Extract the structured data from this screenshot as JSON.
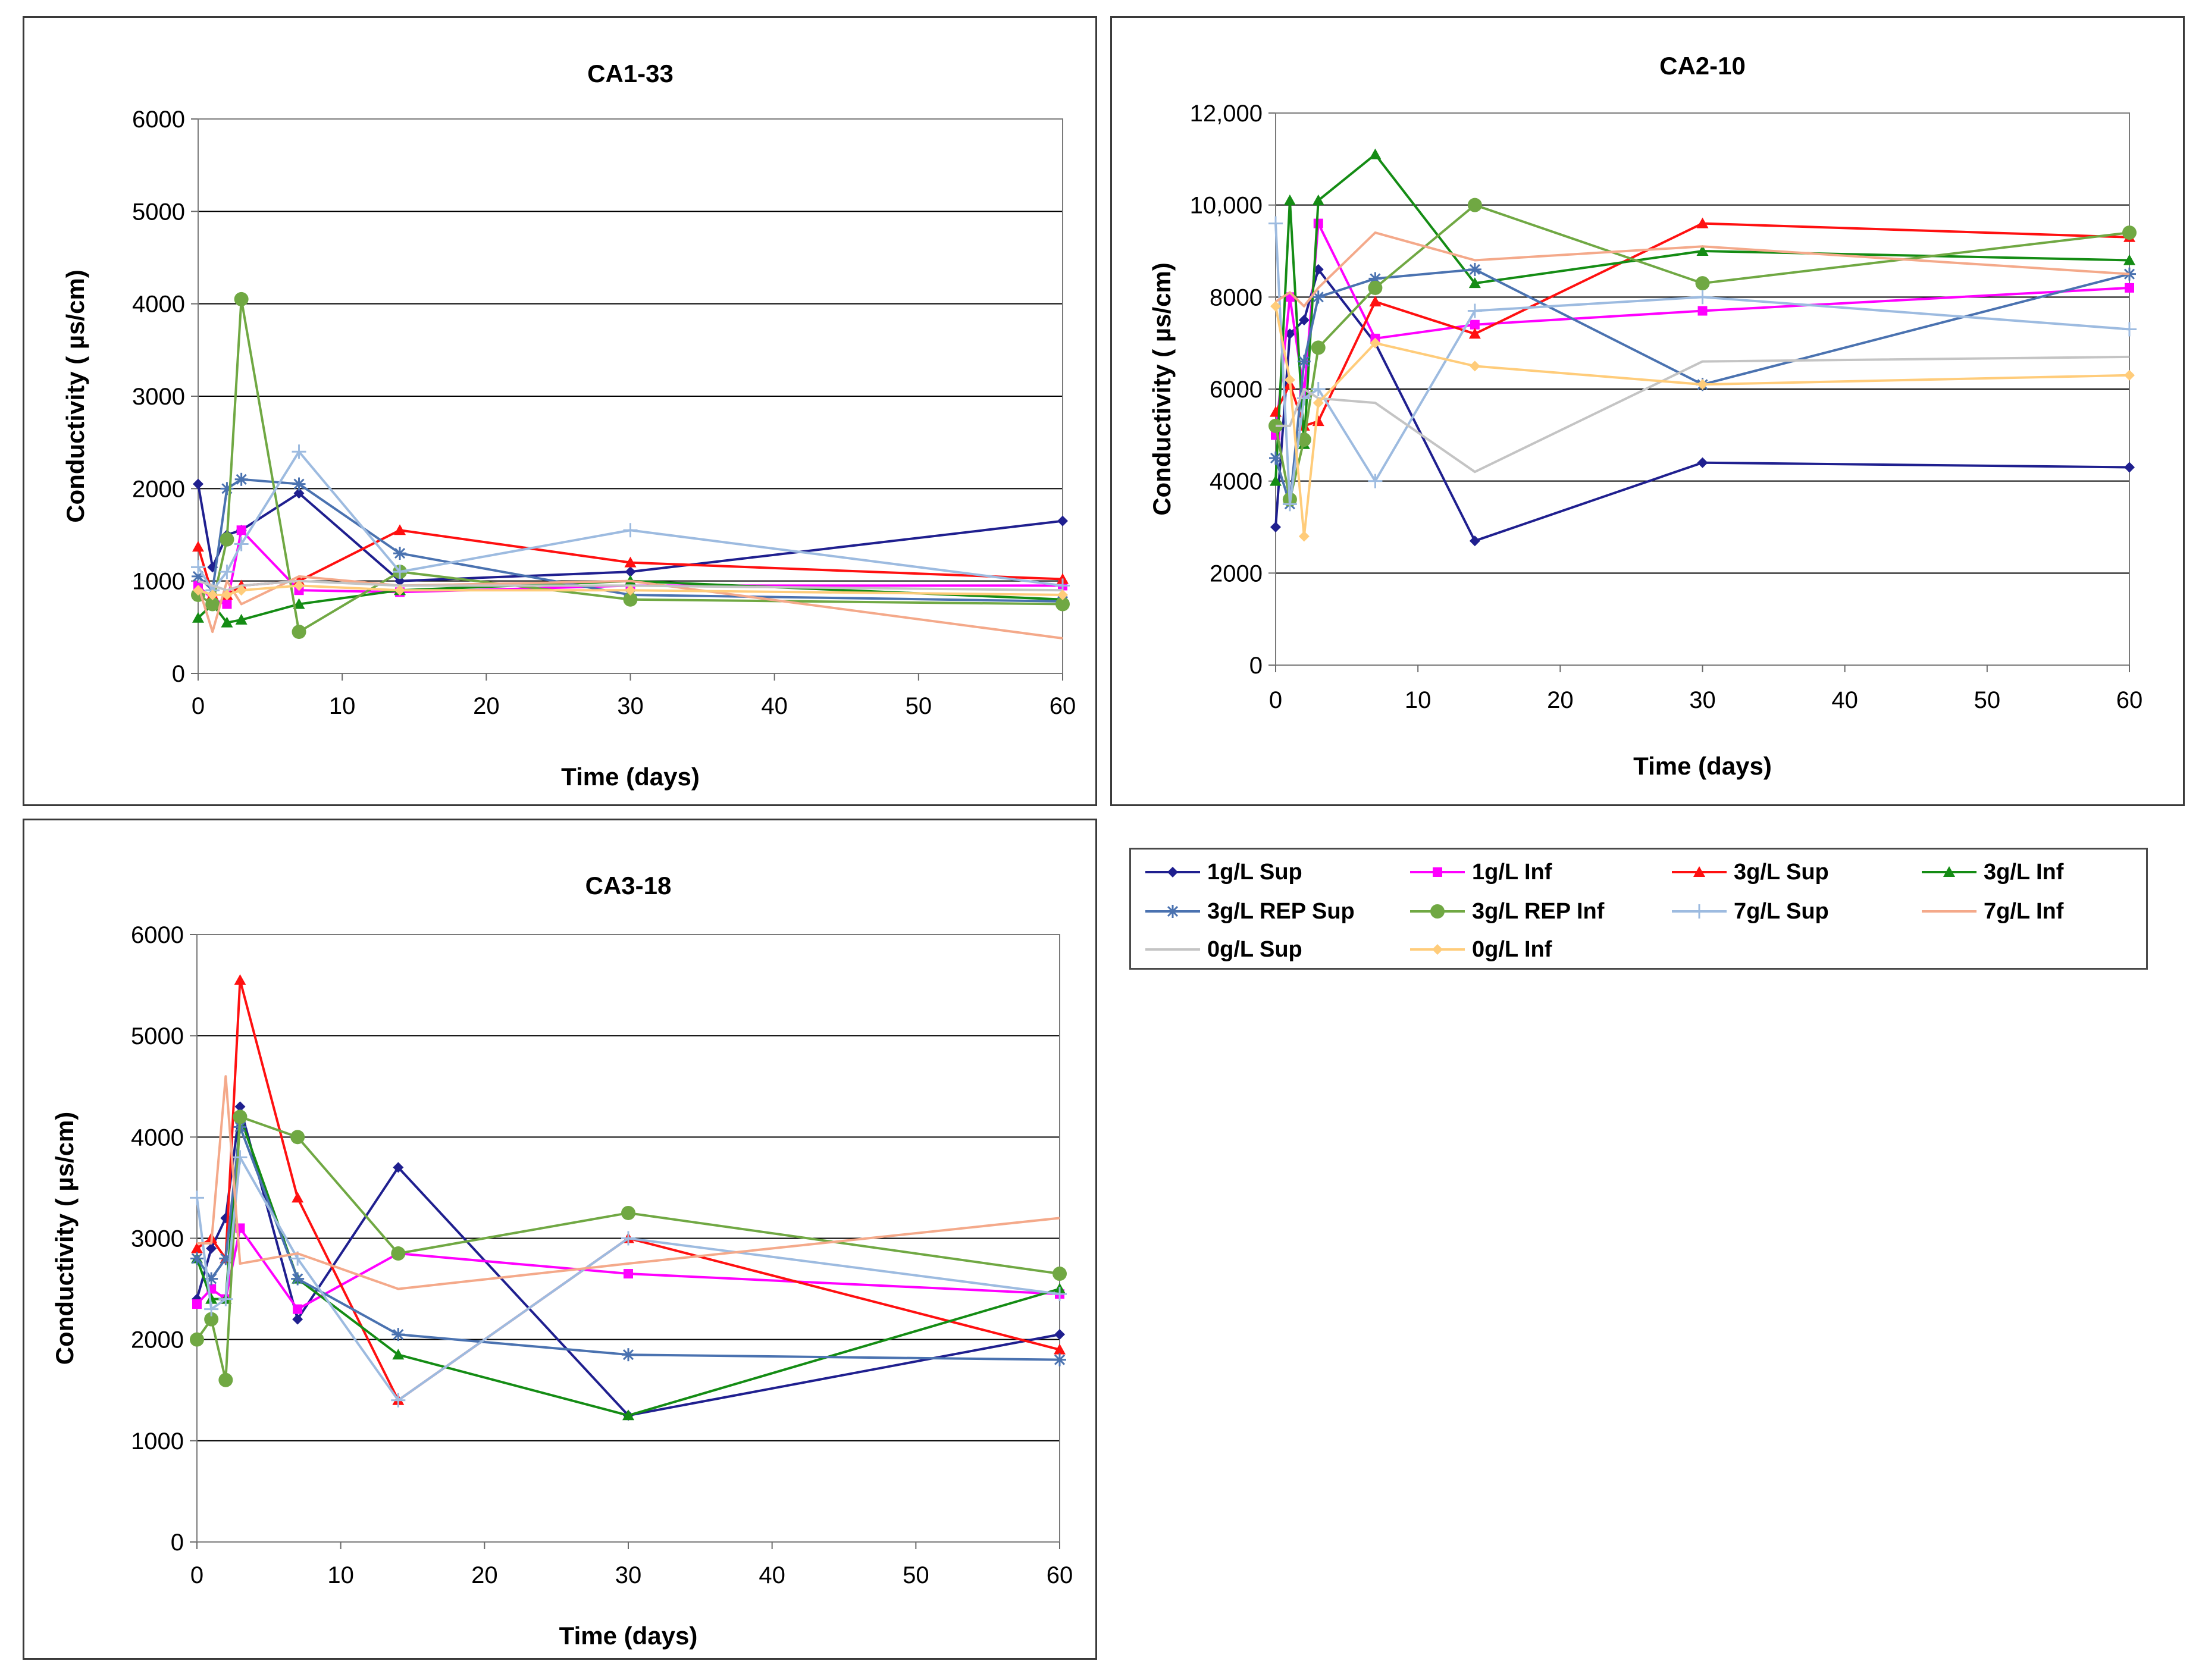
{
  "series_styles": [
    {
      "name": "1g/L Sup",
      "color": "#1f1f8f",
      "marker": "diamond"
    },
    {
      "name": "1g/L Inf",
      "color": "#ff00ff",
      "marker": "square"
    },
    {
      "name": "3g/L Sup",
      "color": "#ff1010",
      "marker": "triangle"
    },
    {
      "name": "3g/L Inf",
      "color": "#148c14",
      "marker": "triangle"
    },
    {
      "name": "3g/L REP Sup",
      "color": "#4a72b0",
      "marker": "star"
    },
    {
      "name": "3g/L REP Inf",
      "color": "#70a843",
      "marker": "circle"
    },
    {
      "name": "7g/L Sup",
      "color": "#9dbbe0",
      "marker": "plus"
    },
    {
      "name": "7g/L Inf",
      "color": "#f4a98a",
      "marker": "none"
    },
    {
      "name": "0g/L Sup",
      "color": "#c4c4c4",
      "marker": "none"
    },
    {
      "name": "0g/L Inf",
      "color": "#ffcc7a",
      "marker": "diamond"
    }
  ],
  "legend": {
    "items": [
      "1g/L Sup",
      "1g/L Inf",
      "3g/L Sup",
      "3g/L Inf",
      "3g/L REP Sup",
      "3g/L REP Inf",
      "7g/L Sup",
      "7g/L Inf",
      "0g/L Sup",
      "0g/L Inf"
    ]
  },
  "chart_data": [
    {
      "type": "line",
      "title": "CA1-33",
      "xlabel": "Time (days)",
      "ylabel": "Conductivity ( µs/cm)",
      "xlim": [
        0,
        60
      ],
      "ylim": [
        0,
        6000
      ],
      "xticks": [
        0,
        10,
        20,
        30,
        40,
        50,
        60
      ],
      "yticks": [
        0,
        1000,
        2000,
        3000,
        4000,
        5000,
        6000
      ],
      "ytick_labels": [
        "0",
        "1000",
        "2000",
        "3000",
        "4000",
        "5000",
        "6000"
      ],
      "grid": true,
      "series": [
        {
          "name": "1g/L Sup",
          "x": [
            0,
            1,
            2,
            3,
            7,
            14,
            30,
            60
          ],
          "y": [
            2050,
            1150,
            1500,
            1550,
            1950,
            1000,
            1100,
            1650
          ]
        },
        {
          "name": "1g/L Inf",
          "x": [
            0,
            1,
            2,
            3,
            7,
            14,
            30,
            60
          ],
          "y": [
            950,
            800,
            750,
            1550,
            900,
            880,
            950,
            950
          ]
        },
        {
          "name": "3g/L Sup",
          "x": [
            0,
            1,
            2,
            3,
            7,
            14,
            30,
            60
          ],
          "y": [
            1370,
            850,
            850,
            950,
            1000,
            1550,
            1200,
            1020
          ]
        },
        {
          "name": "3g/L Inf",
          "x": [
            0,
            1,
            2,
            3,
            7,
            14,
            30,
            60
          ],
          "y": [
            600,
            750,
            550,
            580,
            750,
            900,
            1000,
            800
          ]
        },
        {
          "name": "3g/L REP Sup",
          "x": [
            0,
            1,
            2,
            3,
            7,
            14,
            30,
            60
          ],
          "y": [
            1050,
            900,
            2000,
            2100,
            2050,
            1300,
            850,
            780
          ]
        },
        {
          "name": "3g/L REP Inf",
          "x": [
            0,
            1,
            2,
            3,
            7,
            14,
            30,
            60
          ],
          "y": [
            850,
            750,
            1450,
            4050,
            450,
            1100,
            800,
            750
          ]
        },
        {
          "name": "7g/L Sup",
          "x": [
            0,
            1,
            2,
            3,
            7,
            14,
            30,
            60
          ],
          "y": [
            1150,
            900,
            1100,
            1400,
            2400,
            1100,
            1550,
            950
          ]
        },
        {
          "name": "7g/L Inf",
          "x": [
            0,
            1,
            2,
            3,
            7,
            14,
            30,
            60
          ],
          "y": [
            950,
            450,
            1000,
            750,
            1050,
            950,
            1000,
            380
          ]
        },
        {
          "name": "0g/L Sup",
          "x": [
            0,
            1,
            2,
            3,
            7,
            14,
            30,
            60
          ],
          "y": [
            1000,
            950,
            900,
            950,
            1000,
            950,
            950,
            900
          ]
        },
        {
          "name": "0g/L Inf",
          "x": [
            0,
            1,
            2,
            3,
            7,
            14,
            30,
            60
          ],
          "y": [
            900,
            850,
            850,
            900,
            950,
            900,
            900,
            850
          ]
        }
      ]
    },
    {
      "type": "line",
      "title": "CA2-10",
      "xlabel": "Time (days)",
      "ylabel": "Conductivity ( µs/cm)",
      "xlim": [
        0,
        60
      ],
      "ylim": [
        0,
        12000
      ],
      "xticks": [
        0,
        10,
        20,
        30,
        40,
        50,
        60
      ],
      "yticks": [
        0,
        2000,
        4000,
        6000,
        8000,
        10000,
        12000
      ],
      "ytick_labels": [
        "0",
        "2000",
        "4000",
        "6000",
        "8000",
        "10,000",
        "12,000"
      ],
      "grid": true,
      "series": [
        {
          "name": "1g/L Sup",
          "x": [
            0,
            1,
            2,
            3,
            7,
            14,
            30,
            60
          ],
          "y": [
            3000,
            7200,
            7500,
            8600,
            7000,
            2700,
            4400,
            4300
          ]
        },
        {
          "name": "1g/L Inf",
          "x": [
            0,
            1,
            2,
            3,
            7,
            14,
            30,
            60
          ],
          "y": [
            5000,
            8000,
            5900,
            9600,
            7100,
            7400,
            7700,
            8200
          ]
        },
        {
          "name": "3g/L Sup",
          "x": [
            0,
            1,
            2,
            3,
            7,
            14,
            30,
            60
          ],
          "y": [
            5500,
            6100,
            5200,
            5300,
            7900,
            7200,
            9600,
            9300
          ]
        },
        {
          "name": "3g/L Inf",
          "x": [
            0,
            1,
            2,
            3,
            7,
            14,
            30,
            60
          ],
          "y": [
            4000,
            10100,
            4800,
            10100,
            11100,
            8300,
            9000,
            8800
          ]
        },
        {
          "name": "3g/L REP Sup",
          "x": [
            0,
            1,
            2,
            3,
            7,
            14,
            30,
            60
          ],
          "y": [
            4500,
            3500,
            6600,
            8000,
            8400,
            8600,
            6100,
            8500
          ]
        },
        {
          "name": "3g/L REP Inf",
          "x": [
            0,
            1,
            2,
            3,
            7,
            14,
            30,
            60
          ],
          "y": [
            5200,
            3600,
            4900,
            6900,
            8200,
            10000,
            8300,
            9400
          ]
        },
        {
          "name": "7g/L Sup",
          "x": [
            0,
            1,
            2,
            3,
            7,
            14,
            30,
            60
          ],
          "y": [
            9600,
            3500,
            5800,
            6000,
            4000,
            7700,
            8000,
            7300
          ]
        },
        {
          "name": "7g/L Inf",
          "x": [
            0,
            1,
            2,
            3,
            7,
            14,
            30,
            60
          ],
          "y": [
            7900,
            8100,
            7800,
            8200,
            9400,
            8800,
            9100,
            8500
          ]
        },
        {
          "name": "0g/L Sup",
          "x": [
            0,
            1,
            2,
            3,
            7,
            14,
            30,
            60
          ],
          "y": [
            5200,
            5200,
            6000,
            5800,
            5700,
            4200,
            6600,
            6700
          ]
        },
        {
          "name": "0g/L Inf",
          "x": [
            0,
            1,
            2,
            3,
            7,
            14,
            30,
            60
          ],
          "y": [
            7800,
            6200,
            2800,
            5700,
            7000,
            6500,
            6100,
            6300
          ]
        }
      ]
    },
    {
      "type": "line",
      "title": "CA3-18",
      "xlabel": "Time (days)",
      "ylabel": "Conductivity ( µs/cm)",
      "xlim": [
        0,
        60
      ],
      "ylim": [
        0,
        6000
      ],
      "xticks": [
        0,
        10,
        20,
        30,
        40,
        50,
        60
      ],
      "yticks": [
        0,
        1000,
        2000,
        3000,
        4000,
        5000,
        6000
      ],
      "ytick_labels": [
        "0",
        "1000",
        "2000",
        "3000",
        "4000",
        "5000",
        "6000"
      ],
      "grid": true,
      "series": [
        {
          "name": "1g/L Sup",
          "x": [
            0,
            1,
            2,
            3,
            7,
            14,
            30,
            60
          ],
          "y": [
            2400,
            2900,
            3200,
            4300,
            2200,
            3700,
            1250,
            2050
          ]
        },
        {
          "name": "1g/L Inf",
          "x": [
            0,
            1,
            2,
            3,
            7,
            14,
            30,
            60
          ],
          "y": [
            2350,
            2500,
            2400,
            3100,
            2300,
            2850,
            2650,
            2450
          ]
        },
        {
          "name": "3g/L Sup",
          "x": [
            0,
            1,
            2,
            3,
            7,
            14,
            30,
            60
          ],
          "y": [
            2900,
            3000,
            2800,
            5550,
            3400,
            1400,
            3000,
            1900
          ]
        },
        {
          "name": "3g/L Inf",
          "x": [
            0,
            1,
            2,
            3,
            7,
            14,
            30,
            60
          ],
          "y": [
            2800,
            2400,
            2400,
            4200,
            2600,
            1850,
            1250,
            2500
          ]
        },
        {
          "name": "3g/L REP Sup",
          "x": [
            0,
            1,
            2,
            3,
            7,
            14,
            30,
            60
          ],
          "y": [
            2800,
            2600,
            2800,
            4100,
            2600,
            2050,
            1850,
            1800
          ]
        },
        {
          "name": "3g/L REP Inf",
          "x": [
            0,
            1,
            2,
            3,
            7,
            14,
            30,
            60
          ],
          "y": [
            2000,
            2200,
            1600,
            4200,
            4000,
            2850,
            3250,
            2650
          ]
        },
        {
          "name": "7g/L Sup",
          "x": [
            0,
            1,
            2,
            3,
            7,
            14,
            30,
            60
          ],
          "y": [
            3400,
            2300,
            2400,
            3800,
            2800,
            1400,
            3000,
            2450
          ]
        },
        {
          "name": "7g/L Inf",
          "x": [
            0,
            1,
            2,
            3,
            7,
            14,
            30,
            60
          ],
          "y": [
            2950,
            2950,
            4600,
            2750,
            2850,
            2500,
            2750,
            3200
          ]
        }
      ]
    }
  ]
}
